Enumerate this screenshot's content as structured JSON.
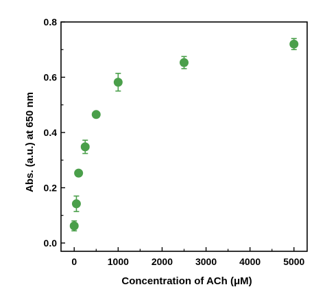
{
  "chart_data": {
    "type": "scatter",
    "title": "",
    "xlabel": "Concentration of ACh (μM)",
    "ylabel": "Abs. (a.u.) at 650 nm",
    "xlim": [
      -300,
      5300
    ],
    "ylim": [
      -0.03,
      0.8
    ],
    "xticks": [
      "0",
      "1000",
      "2000",
      "3000",
      "4000",
      "5000"
    ],
    "yticks": [
      "0.0",
      "0.2",
      "0.4",
      "0.6",
      "0.8"
    ],
    "grid": false,
    "marker_color": "#4a9f4a",
    "series": [
      {
        "points": [
          {
            "x": 0,
            "y": 0.062,
            "err": 0.018
          },
          {
            "x": 50,
            "y": 0.142,
            "err": 0.028
          },
          {
            "x": 100,
            "y": 0.253,
            "err": 0.008
          },
          {
            "x": 250,
            "y": 0.348,
            "err": 0.024
          },
          {
            "x": 500,
            "y": 0.465,
            "err": 0.008
          },
          {
            "x": 1000,
            "y": 0.582,
            "err": 0.032
          },
          {
            "x": 2500,
            "y": 0.653,
            "err": 0.022
          },
          {
            "x": 5000,
            "y": 0.72,
            "err": 0.02
          }
        ]
      }
    ]
  }
}
